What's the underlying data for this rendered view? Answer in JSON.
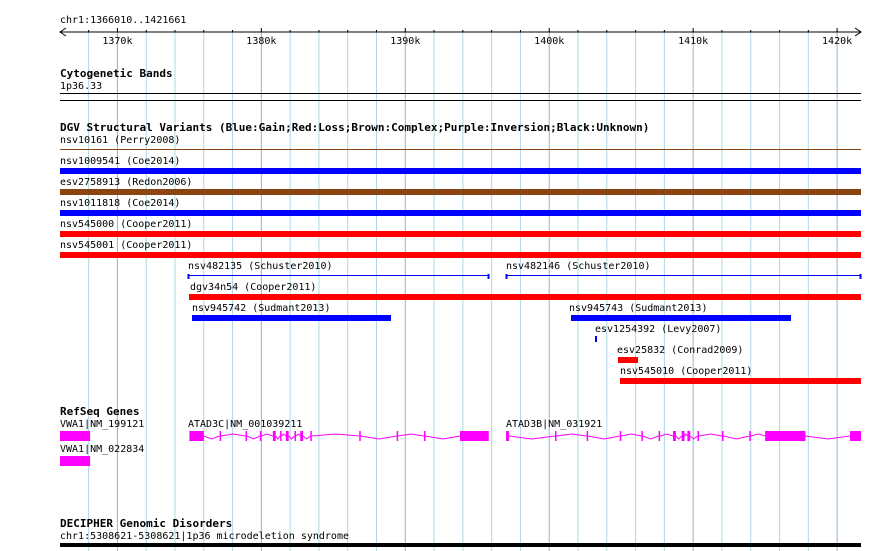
{
  "browser": {
    "position": "chr1:1366010..1421661",
    "ruler": {
      "start": 1366010,
      "end": 1421661,
      "ticks": [
        {
          "pos": 1370000,
          "label": "1370k"
        },
        {
          "pos": 1380000,
          "label": "1380k"
        },
        {
          "pos": 1390000,
          "label": "1390k"
        },
        {
          "pos": 1400000,
          "label": "1400k"
        },
        {
          "pos": 1410000,
          "label": "1410k"
        },
        {
          "pos": 1420000,
          "label": "1420k"
        }
      ],
      "grid_step": 2000
    },
    "colors": {
      "gain": "#0000ff",
      "loss": "#ff0000",
      "complex": "#8b4513",
      "gene": "#ff00ff",
      "grid": "#add8e6",
      "ruler": "#000000"
    }
  },
  "tracks": {
    "cytoband": {
      "title": "Cytogenetic Bands",
      "band": "1p36.33"
    },
    "dgv": {
      "title": "DGV Structural Variants (Blue:Gain;Red:Loss;Brown:Complex;Purple:Inversion;Black:Unknown)",
      "features": [
        {
          "label": "nsv10161 (Perry2008)",
          "type": "complex",
          "start": 1366010,
          "end": 1421661,
          "style": "thin"
        },
        {
          "label": "nsv1009541 (Coe2014)",
          "type": "gain",
          "start": 1366010,
          "end": 1421661,
          "style": "thick"
        },
        {
          "label": "esv2758913 (Redon2006)",
          "type": "complex",
          "start": 1366010,
          "end": 1421661,
          "style": "thick"
        },
        {
          "label": "nsv1011818 (Coe2014)",
          "type": "gain",
          "start": 1366010,
          "end": 1421661,
          "style": "thick"
        },
        {
          "label": "nsv545000 (Cooper2011)",
          "type": "loss",
          "start": 1366010,
          "end": 1421661,
          "style": "thick"
        },
        {
          "label": "nsv545001 (Cooper2011)",
          "type": "loss",
          "start": 1366010,
          "end": 1421661,
          "style": "thick"
        },
        {
          "label": "nsv482135 (Schuster2010)",
          "type": "gain",
          "start": 1374900,
          "end": 1395800,
          "style": "span"
        },
        {
          "label": "nsv482146 (Schuster2010)",
          "type": "gain",
          "start": 1397000,
          "end": 1421661,
          "style": "span"
        },
        {
          "label": "dgv34n54 (Cooper2011)",
          "type": "loss",
          "start": 1375000,
          "end": 1421661,
          "style": "thick"
        },
        {
          "label": "nsv945742 (Sudmant2013)",
          "type": "gain",
          "start": 1375200,
          "end": 1389000,
          "style": "thick"
        },
        {
          "label": "nsv945743 (Sudmant2013)",
          "type": "gain",
          "start": 1401500,
          "end": 1416800,
          "style": "thick"
        },
        {
          "label": "esv1254392 (Levy2007)",
          "type": "gain",
          "start": 1403200,
          "end": 1403300,
          "style": "thick"
        },
        {
          "label": "esv25832 (Conrad2009)",
          "type": "loss",
          "start": 1404800,
          "end": 1406200,
          "style": "thick"
        },
        {
          "label": "nsv545010 (Cooper2011)",
          "type": "loss",
          "start": 1404900,
          "end": 1421661,
          "style": "thick"
        }
      ]
    },
    "refseq": {
      "title": "RefSeq Genes",
      "genes": [
        {
          "label": "VWA1|NM_199121",
          "start": 1366010,
          "end": 1368100,
          "exons": [
            [
              1366010,
              1368100
            ]
          ]
        },
        {
          "label": "VWA1|NM_022834",
          "start": 1366010,
          "end": 1368100,
          "exons": [
            [
              1366010,
              1368100
            ]
          ]
        },
        {
          "label": "ATAD3C|NM_001039211",
          "start": 1375000,
          "end": 1395800,
          "exons": [
            [
              1375000,
              1376000
            ],
            [
              1377100,
              1377200
            ],
            [
              1378900,
              1379000
            ],
            [
              1379900,
              1380000
            ],
            [
              1380800,
              1381000
            ],
            [
              1381300,
              1381400
            ],
            [
              1381700,
              1381900
            ],
            [
              1382300,
              1382400
            ],
            [
              1382700,
              1382900
            ],
            [
              1383400,
              1383500
            ],
            [
              1386800,
              1386900
            ],
            [
              1389400,
              1389500
            ],
            [
              1391300,
              1391400
            ],
            [
              1393800,
              1395800
            ]
          ]
        },
        {
          "label": "ATAD3B|NM_031921",
          "start": 1397000,
          "end": 1421661,
          "exons": [
            [
              1397000,
              1397200
            ],
            [
              1400400,
              1400500
            ],
            [
              1402600,
              1402700
            ],
            [
              1404900,
              1405000
            ],
            [
              1406400,
              1406500
            ],
            [
              1407600,
              1407700
            ],
            [
              1408600,
              1408800
            ],
            [
              1409200,
              1409400
            ],
            [
              1409600,
              1409800
            ],
            [
              1410300,
              1410400
            ],
            [
              1412000,
              1412100
            ],
            [
              1413900,
              1414000
            ],
            [
              1415000,
              1417800
            ],
            [
              1420900,
              1421661
            ]
          ]
        }
      ]
    },
    "decipher": {
      "title": "DECIPHER Genomic Disorders",
      "feature": "chr1:5308621-5308621|1p36 microdeletion syndrome"
    }
  }
}
